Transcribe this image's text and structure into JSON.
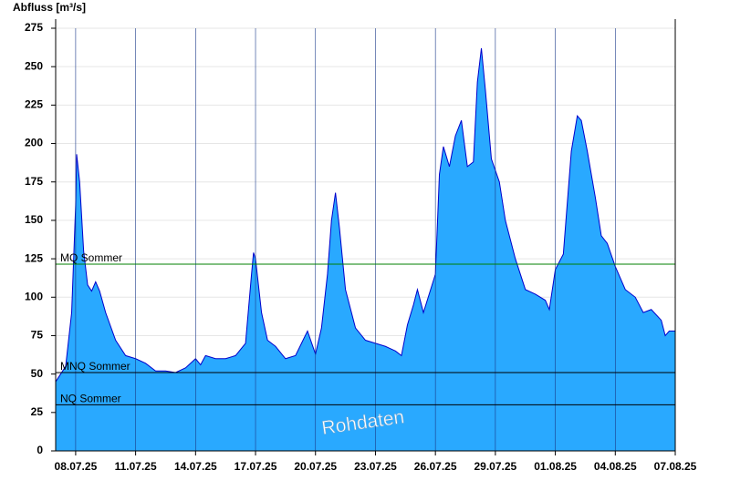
{
  "chart_data": {
    "type": "area",
    "y_label": "Abfluss [m³/s]",
    "annotation": "Rohdaten",
    "x": [
      0,
      0.5,
      0.8,
      1.0,
      1.05,
      1.2,
      1.4,
      1.6,
      1.8,
      2.0,
      2.2,
      2.5,
      3.0,
      3.5,
      4.0,
      4.5,
      5.0,
      5.5,
      6.0,
      6.5,
      7.0,
      7.25,
      7.5,
      8.0,
      8.5,
      9.0,
      9.5,
      9.8,
      9.9,
      10.0,
      10.3,
      10.6,
      11.0,
      11.5,
      12.0,
      12.3,
      12.6,
      13.0,
      13.3,
      13.6,
      13.8,
      14.0,
      14.2,
      14.5,
      14.8,
      15.0,
      15.5,
      16.0,
      16.5,
      17.0,
      17.3,
      17.6,
      17.9,
      18.1,
      18.4,
      19.0,
      19.2,
      19.4,
      19.7,
      20.0,
      20.3,
      20.6,
      20.9,
      21.1,
      21.3,
      21.5,
      21.8,
      22.2,
      22.5,
      23.0,
      23.5,
      24.0,
      24.5,
      24.7,
      25.0,
      25.4,
      25.8,
      26.1,
      26.3,
      26.6,
      27.0,
      27.3,
      27.6,
      28.0,
      28.5,
      29.0,
      29.4,
      29.8,
      30.3,
      30.5,
      30.7,
      31.0
    ],
    "values": [
      45,
      55,
      90,
      160,
      193,
      175,
      130,
      108,
      104,
      110,
      104,
      90,
      72,
      62,
      60,
      57,
      52,
      52,
      51,
      54,
      60,
      56,
      62,
      60,
      60,
      62,
      70,
      115,
      129,
      125,
      90,
      72,
      68,
      60,
      62,
      70,
      78,
      63,
      80,
      115,
      150,
      168,
      145,
      105,
      90,
      80,
      72,
      70,
      68,
      65,
      62,
      82,
      95,
      105,
      90,
      115,
      180,
      198,
      185,
      205,
      215,
      185,
      188,
      240,
      262,
      235,
      190,
      175,
      150,
      125,
      105,
      102,
      98,
      92,
      118,
      128,
      195,
      218,
      215,
      195,
      165,
      140,
      135,
      120,
      105,
      100,
      90,
      92,
      85,
      75,
      78,
      78
    ],
    "color": "#29a9ff",
    "line_color": "#0000cc",
    "xlim": [
      0,
      31
    ],
    "xticks": [
      {
        "value": 1,
        "label": "08.07.25"
      },
      {
        "value": 4,
        "label": "11.07.25"
      },
      {
        "value": 7,
        "label": "14.07.25"
      },
      {
        "value": 10,
        "label": "17.07.25"
      },
      {
        "value": 13,
        "label": "20.07.25"
      },
      {
        "value": 16,
        "label": "23.07.25"
      },
      {
        "value": 19,
        "label": "26.07.25"
      },
      {
        "value": 22,
        "label": "29.07.25"
      },
      {
        "value": 25,
        "label": "01.08.25"
      },
      {
        "value": 28,
        "label": "04.08.25"
      },
      {
        "value": 31,
        "label": "07.08.25"
      }
    ],
    "ylim": [
      0,
      275
    ],
    "yticks": [
      0,
      25,
      50,
      75,
      100,
      125,
      150,
      175,
      200,
      225,
      250,
      275
    ],
    "grid": true,
    "reference_lines": [
      {
        "label": "MQ Sommer",
        "value": 121.5,
        "color": "#008000"
      },
      {
        "label": "MNQ Sommer",
        "value": 51,
        "color": "#000000"
      },
      {
        "label": "NQ Sommer",
        "value": 30,
        "color": "#000000"
      }
    ]
  }
}
